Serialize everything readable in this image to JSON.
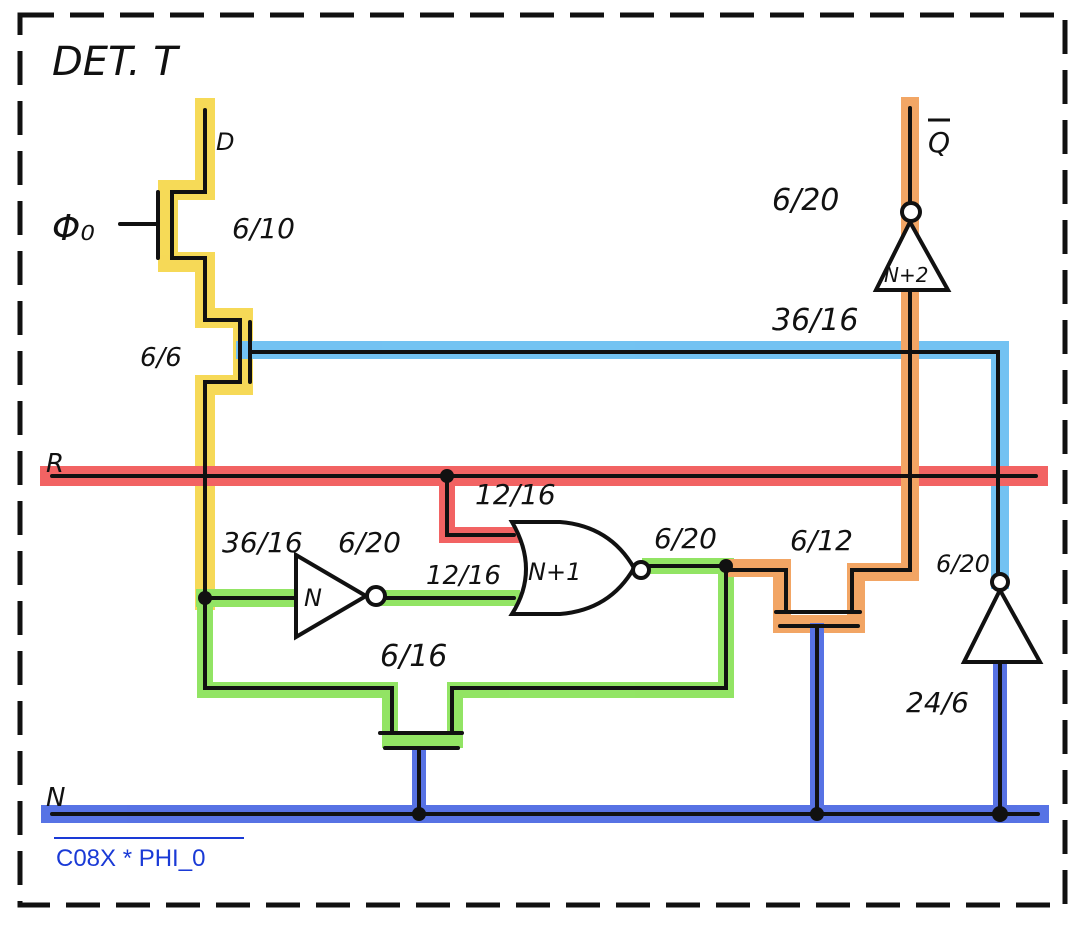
{
  "title": "DET. T",
  "signals": {
    "d": "D",
    "q_bar": "Q",
    "phi": "Φ₀",
    "r": "R",
    "n": "N"
  },
  "sizes": {
    "pass_gate": "6/10",
    "series_gate": "6/6",
    "nor_input": "12/16",
    "inv_n_left": "36/16",
    "inv_n_right": "6/20",
    "nor_to_inv": "12/16",
    "nor_out": "6/20",
    "pulldown_mid": "6/12",
    "feedback": "6/16",
    "out_inv_top": "6/20",
    "out_inv_bottom": "36/16",
    "bottom_inv_top": "6/20",
    "bottom_inv_bottom": "24/6"
  },
  "gates": {
    "inv_left": "N",
    "nor": "N+1",
    "inv_out": "N+2"
  },
  "caption": "C08X * PHI_0",
  "colors": {
    "yellow": "#f5d33a",
    "blue_light": "#5bb8f0",
    "red": "#f04848",
    "green": "#7fe04a",
    "orange": "#f0964a",
    "blue_dark": "#3a5ae0",
    "ink": "#111111"
  }
}
